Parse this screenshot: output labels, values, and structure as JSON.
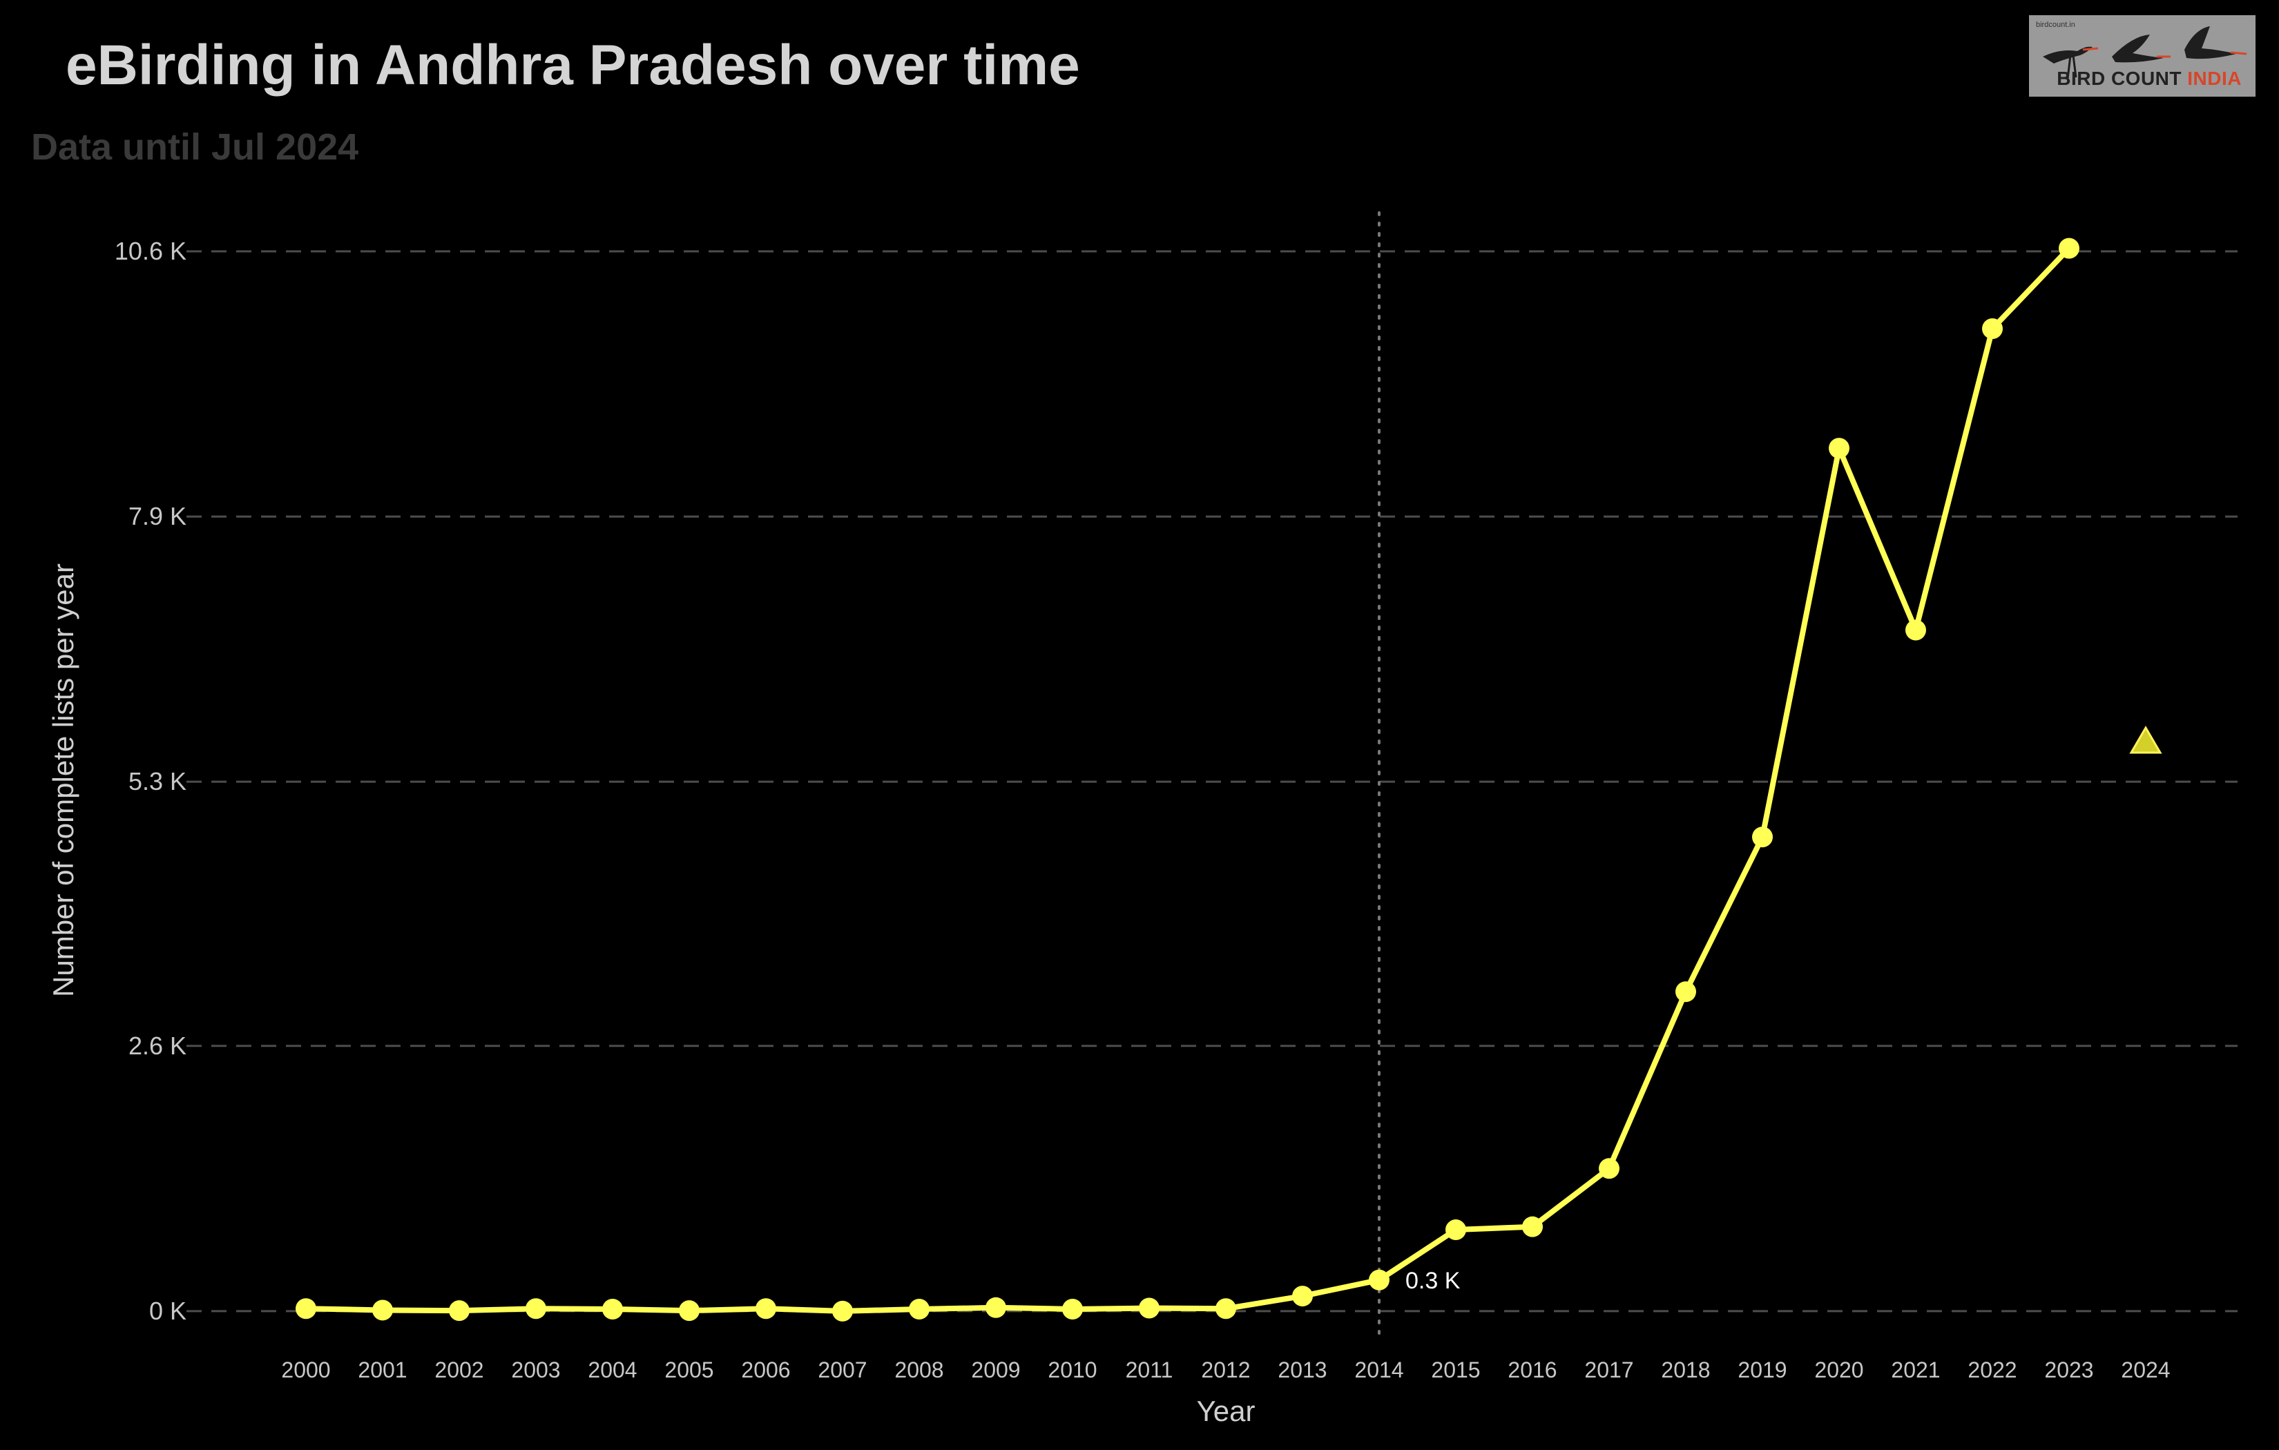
{
  "header": {
    "title": "eBirding in Andhra Pradesh over time",
    "subtitle": "Data until Jul 2024"
  },
  "logo": {
    "small_text": "birdcount.in",
    "text_main": "BIRD COUNT ",
    "text_accent": "INDIA",
    "accent_color": "#d8462a"
  },
  "chart_data": {
    "type": "line",
    "title": "eBirding in Andhra Pradesh over time",
    "subtitle": "Data until Jul 2024",
    "xlabel": "Year",
    "ylabel": "Number of complete lists per year",
    "categories": [
      "2000",
      "2001",
      "2002",
      "2003",
      "2004",
      "2005",
      "2006",
      "2007",
      "2008",
      "2009",
      "2010",
      "2011",
      "2012",
      "2013",
      "2014",
      "2015",
      "2016",
      "2017",
      "2018",
      "2019",
      "2020",
      "2021",
      "2022",
      "2023",
      "2024"
    ],
    "series": [
      {
        "values": [
          25,
          10,
          5,
          25,
          20,
          5,
          25,
          0,
          20,
          35,
          20,
          30,
          25,
          150,
          310,
          810,
          840,
          1420,
          3180,
          4720,
          8590,
          6780,
          9780,
          10580,
          null
        ],
        "marker": "circle",
        "color": "#ffff55"
      }
    ],
    "partial_year": {
      "category": "2024",
      "value": 5670,
      "marker": "triangle",
      "color": "#d4d02a"
    },
    "annotation": {
      "category": "2014",
      "text": "0.3 K"
    },
    "reference_line": {
      "category": "2014",
      "style": "dotted"
    },
    "y_ticks": [
      {
        "value": 0,
        "label": "0 K"
      },
      {
        "value": 2640,
        "label": "2.6 K"
      },
      {
        "value": 5270,
        "label": "5.3 K"
      },
      {
        "value": 7910,
        "label": "7.9 K"
      },
      {
        "value": 10550,
        "label": "10.6 K"
      }
    ],
    "ylim": [
      -420,
      10990
    ],
    "grid": "horizontal dashed",
    "legend": "none",
    "colors": {
      "background": "#000000",
      "line": "#ffff55",
      "grid": "#4d4d4d",
      "tick_text": "#c8c8c8"
    }
  }
}
